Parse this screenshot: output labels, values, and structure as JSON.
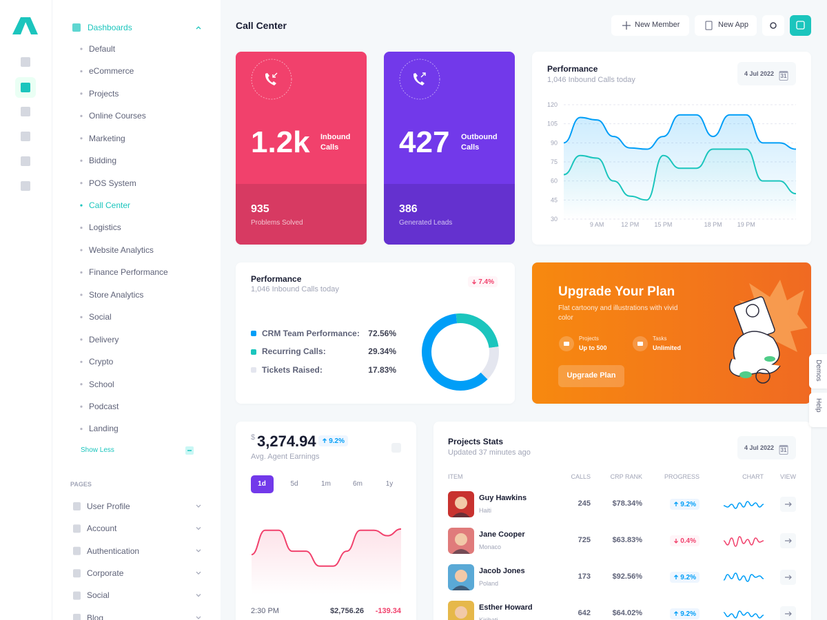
{
  "sidebar": {
    "menu_title": "Dashboards",
    "items": [
      "Default",
      "eCommerce",
      "Projects",
      "Online Courses",
      "Marketing",
      "Bidding",
      "POS System",
      "Call Center",
      "Logistics",
      "Website Analytics",
      "Finance Performance",
      "Store Analytics",
      "Social",
      "Delivery",
      "Crypto",
      "School",
      "Podcast",
      "Landing"
    ],
    "active_item": 7,
    "show_less": "Show Less",
    "pages_heading": "PAGES",
    "pages": [
      "User Profile",
      "Account",
      "Authentication",
      "Corporate",
      "Social",
      "Blog"
    ]
  },
  "header": {
    "title": "Call Center",
    "buttons": [
      "New Member",
      "New App"
    ]
  },
  "stats": [
    {
      "value": "1.2k",
      "label": "Inbound Calls",
      "sub_value": 935,
      "sub_label": "Problems Solved",
      "color": "#f1416c",
      "footer_color": "#d73a62"
    },
    {
      "value": 427,
      "label": "Outbound Calls",
      "sub_value": 386,
      "sub_label": "Generated Leads",
      "color": "#7239ea",
      "footer_color": "#6431cf"
    }
  ],
  "performance_chart": {
    "type": "line",
    "title": "Performance",
    "subtitle": "1,046 Inbound Calls today",
    "date": "4 Jul 2022",
    "date_icon": "31",
    "categories": [
      null,
      null,
      "9 AM",
      null,
      "12 PM",
      null,
      "15 PM",
      null,
      null,
      "18 PM",
      null,
      "19 PM",
      null,
      null,
      null
    ],
    "series": [
      {
        "color": "#009ef7",
        "values": [
          90,
          110,
          108,
          95,
          86,
          85,
          95,
          112,
          112,
          95,
          112,
          112,
          90,
          90,
          85
        ]
      },
      {
        "color": "#1bc5bd",
        "values": [
          65,
          80,
          78,
          60,
          48,
          45,
          80,
          70,
          70,
          85,
          85,
          85,
          60,
          60,
          50
        ]
      }
    ],
    "ylim": [
      30,
      120
    ],
    "yticks": [
      120,
      105,
      90,
      75,
      60,
      45,
      30
    ],
    "grid": true
  },
  "breakdown": {
    "type": "pie",
    "title": "Performance",
    "subtitle": "1,046 Inbound Calls today",
    "change": "7.4%",
    "trend": "down",
    "categories": [
      "CRM Team Performance:",
      "Recurring Calls:",
      "Tickets Raised:"
    ],
    "values": [
      72.56,
      29.34,
      17.83
    ],
    "value_labels": [
      "72.56%",
      "29.34%",
      "17.83%"
    ],
    "colors": [
      "#009ef7",
      "#1bc5bd",
      "#e4e6ef"
    ]
  },
  "upgrade": {
    "title": "Upgrade Your Plan",
    "text": "Flat cartoony and illustrations with vivid color",
    "features": [
      {
        "label": "Projects",
        "value": "Up to 500"
      },
      {
        "label": "Tasks",
        "value": "Unlimited"
      }
    ],
    "button": "Upgrade Plan"
  },
  "earnings": {
    "type": "line",
    "currency": "$",
    "amount": "3,274.94",
    "change": "9.2%",
    "trend": "up",
    "label": "Avg. Agent Earnings",
    "ranges": [
      "1d",
      "5d",
      "1m",
      "6m",
      "1y"
    ],
    "active_range": 0,
    "color": "#f1416c",
    "values": [
      54,
      90,
      90,
      59,
      59,
      37,
      37,
      59,
      90,
      90,
      82,
      92
    ],
    "ylim": [
      0,
      100
    ],
    "footer": {
      "time": "2:30 PM",
      "amount": "$2,756.26",
      "change": "-139.34"
    }
  },
  "projects": {
    "title": "Projects Stats",
    "subtitle": "Updated 37 minutes ago",
    "date": "4 Jul 2022",
    "date_icon": "31",
    "columns": [
      "ITEM",
      "CALLS",
      "CRP RANK",
      "PROGRESS",
      "CHART",
      "VIEW"
    ],
    "spark_ylim": [
      0,
      10
    ],
    "rows": [
      {
        "name": "Guy Hawkins",
        "location": "Haiti",
        "calls": 245,
        "rank": "$78.34%",
        "progress": "9.2%",
        "trend": "up",
        "color": "#009ef7",
        "spark": [
          4,
          3,
          5,
          2,
          6,
          3,
          7,
          4,
          6,
          3,
          5
        ]
      },
      {
        "name": "Jane Cooper",
        "location": "Monaco",
        "calls": 725,
        "rank": "$63.83%",
        "progress": "0.4%",
        "trend": "down",
        "color": "#f1416c",
        "spark": [
          5,
          2,
          7,
          1,
          8,
          3,
          6,
          2,
          7,
          4,
          5
        ]
      },
      {
        "name": "Jacob Jones",
        "location": "Poland",
        "calls": 173,
        "rank": "$92.56%",
        "progress": "9.2%",
        "trend": "up",
        "color": "#009ef7",
        "spark": [
          3,
          7,
          4,
          8,
          3,
          6,
          2,
          7,
          5,
          6,
          4
        ]
      },
      {
        "name": "Esther Howard",
        "location": "Kiribati",
        "calls": 642,
        "rank": "$64.02%",
        "progress": "9.2%",
        "trend": "up",
        "color": "#009ef7",
        "spark": [
          6,
          3,
          5,
          2,
          7,
          4,
          6,
          3,
          5,
          2,
          4
        ]
      }
    ]
  },
  "side_tabs": [
    "Demos",
    "Help"
  ]
}
